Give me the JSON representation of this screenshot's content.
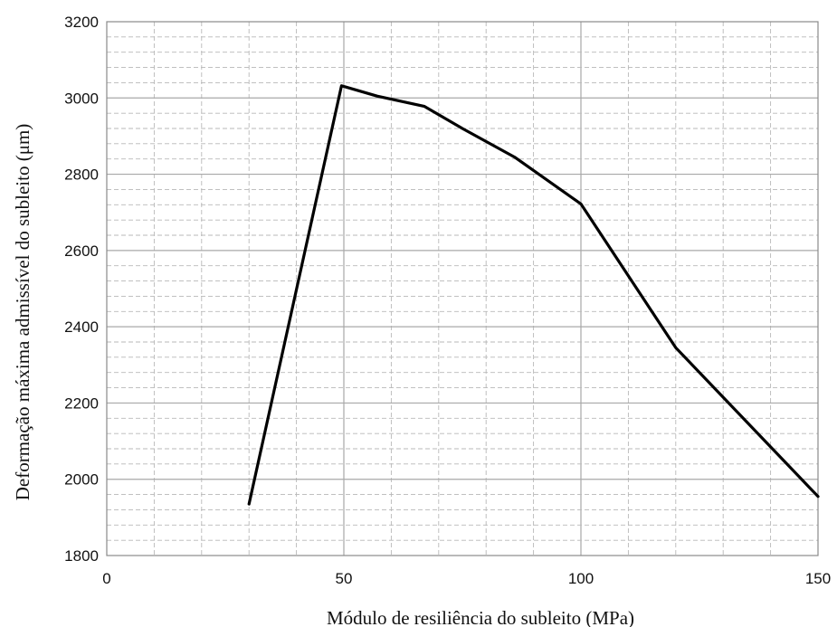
{
  "chart_data": {
    "type": "line",
    "title": "",
    "xlabel": "Módulo de resiliência do subleito (MPa)",
    "ylabel": "Deformação máxima admissível do subleito (μm)",
    "xlim": [
      0,
      150
    ],
    "ylim": [
      1800,
      3200
    ],
    "x_ticks": [
      0,
      50,
      100,
      150
    ],
    "y_ticks": [
      1800,
      2000,
      2200,
      2400,
      2600,
      2800,
      3000,
      3200
    ],
    "x_minor_step": 10,
    "y_minor_step": 40,
    "grid": true,
    "legend": "none",
    "series": [
      {
        "color": "#000000",
        "x": [
          30,
          49.5,
          57,
          67,
          75,
          86,
          100,
          120,
          150
        ],
        "y": [
          1935,
          3032,
          3005,
          2978,
          2920,
          2845,
          2722,
          2345,
          1955
        ]
      }
    ]
  }
}
